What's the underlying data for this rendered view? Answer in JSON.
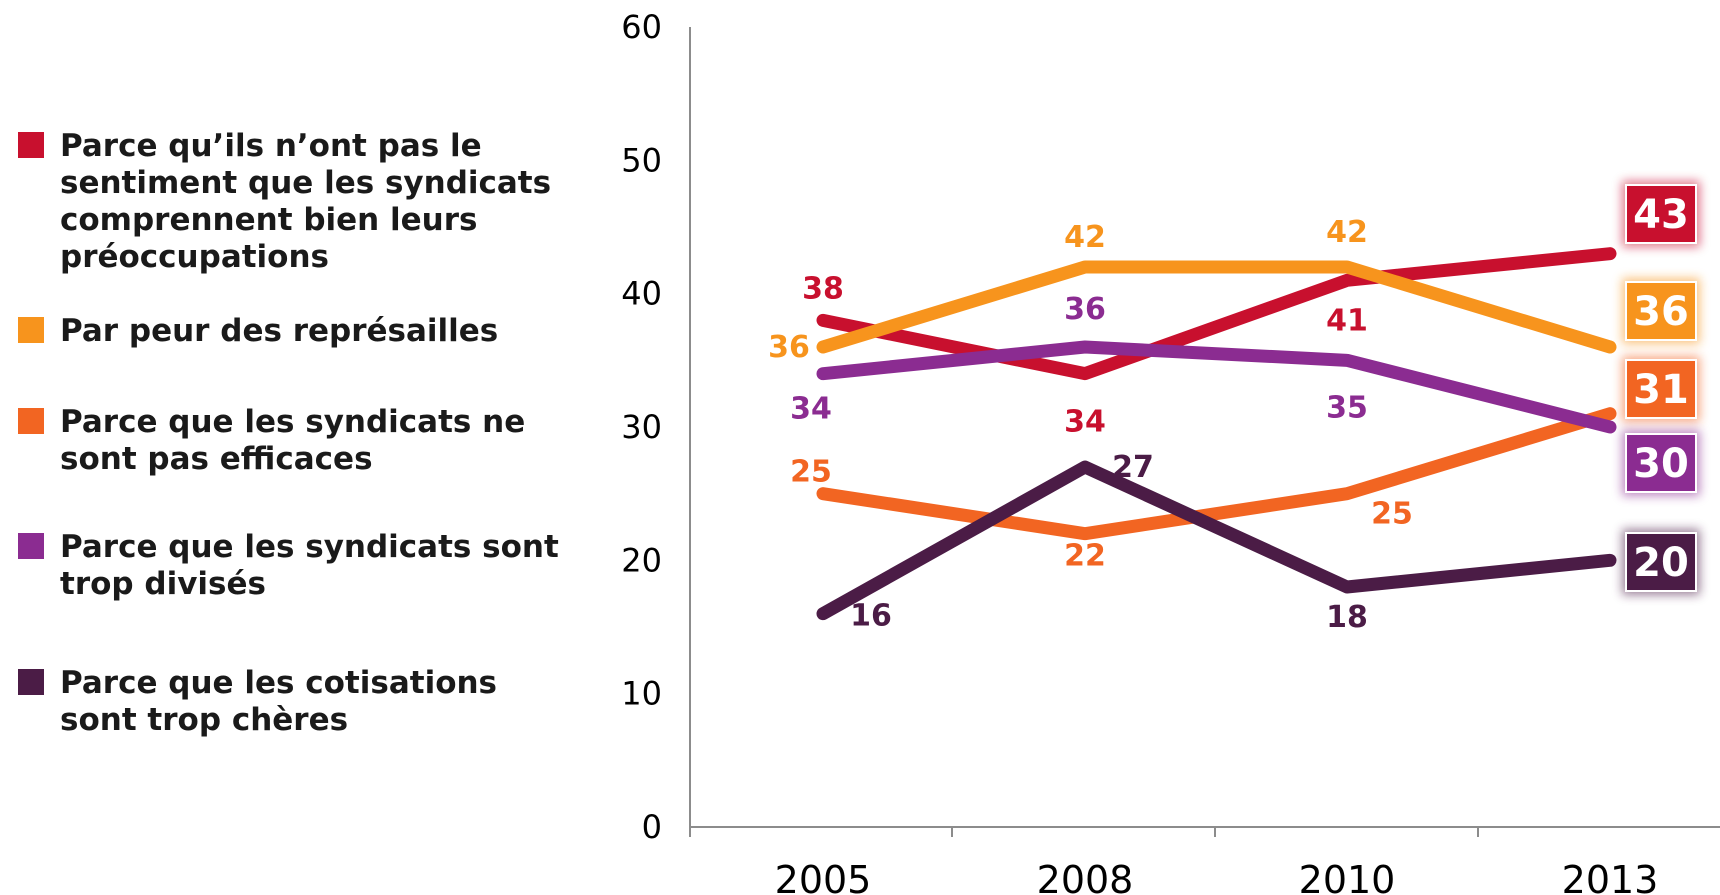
{
  "chart_data": {
    "type": "line",
    "categories": [
      "2005",
      "2008",
      "2010",
      "2013"
    ],
    "ylim": [
      0,
      60
    ],
    "yticks": [
      "0",
      "10",
      "20",
      "30",
      "40",
      "50",
      "60"
    ],
    "legend_position": "left",
    "grid": false,
    "series": [
      {
        "name": "Parce qu’ils n’ont pas le sentiment que les syndicats comprennent bien leurs préoccupations",
        "color": "#c8102e",
        "values": [
          38,
          34,
          41,
          43
        ]
      },
      {
        "name": "Par peur des représailles",
        "color": "#f7941d",
        "values": [
          36,
          42,
          42,
          36
        ]
      },
      {
        "name": "Parce que les syndicats ne sont pas efficaces",
        "color": "#f26522",
        "values": [
          25,
          22,
          25,
          31
        ]
      },
      {
        "name": "Parce que les syndicats sont trop divisés",
        "color": "#8b2c91",
        "values": [
          34,
          36,
          35,
          30
        ]
      },
      {
        "name": "Parce que les cotisations sont trop chères",
        "color": "#4b1c46",
        "values": [
          16,
          27,
          18,
          20
        ]
      }
    ],
    "labels": [
      [
        "38",
        "34",
        "41",
        "43"
      ],
      [
        "36",
        "42",
        "42",
        "36"
      ],
      [
        "25",
        "22",
        "25",
        "31"
      ],
      [
        "34",
        "36",
        "35",
        "30"
      ],
      [
        "16",
        "27",
        "18",
        "20"
      ]
    ]
  }
}
